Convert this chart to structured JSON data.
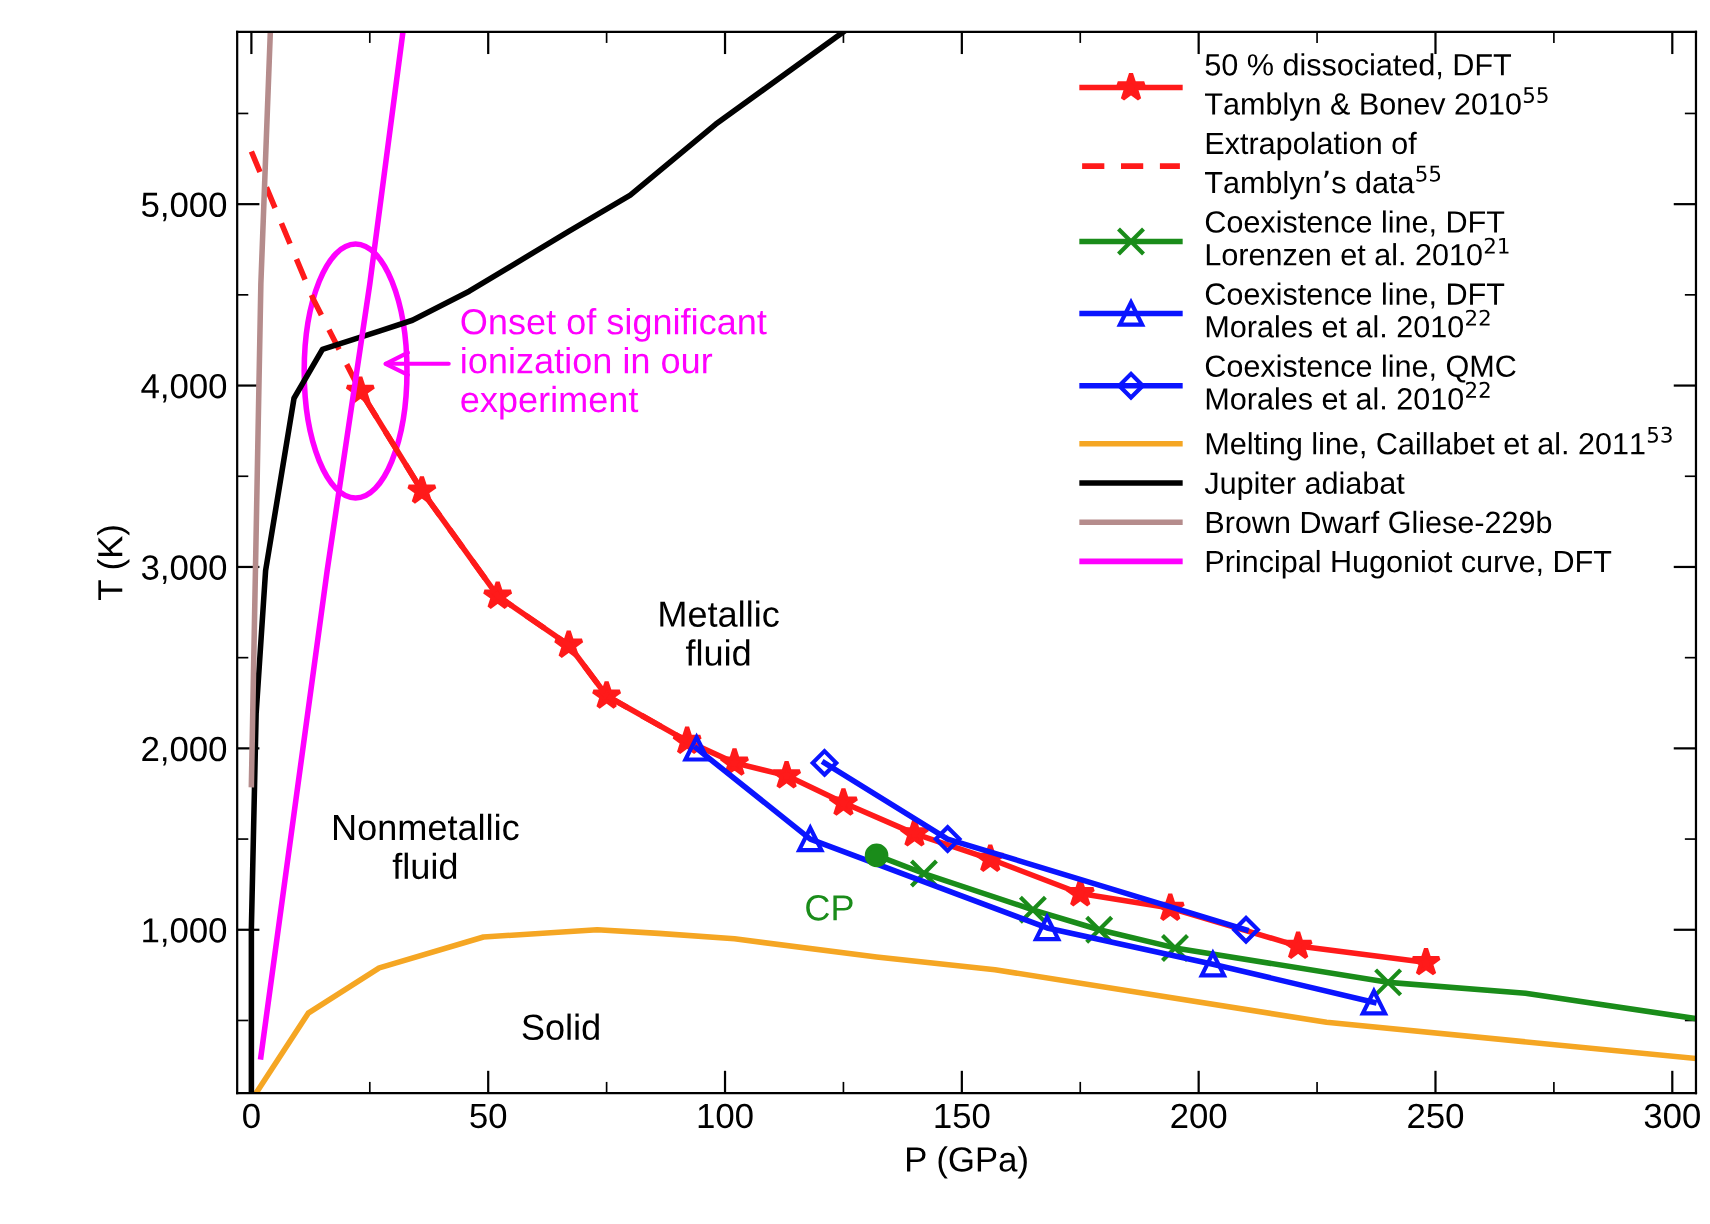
{
  "chart_data": {
    "type": "line",
    "xlabel": "P (GPa)",
    "ylabel": "T (K)",
    "xlim": [
      -3,
      305
    ],
    "ylim": [
      100,
      5950
    ],
    "xticks": [
      0,
      {
        "value": 25,
        "label": null
      },
      50,
      {
        "value": 75,
        "label": null
      },
      100,
      {
        "value": 125,
        "label": null
      },
      150,
      {
        "value": 175,
        "label": null
      },
      200,
      {
        "value": 225,
        "label": null
      },
      250,
      {
        "value": 275,
        "label": null
      },
      300
    ],
    "yticks": [
      {
        "value": 500,
        "label": null
      },
      {
        "value": 1000,
        "label": "1,000"
      },
      {
        "value": 1500,
        "label": null
      },
      {
        "value": 2000,
        "label": "2,000"
      },
      {
        "value": 2500,
        "label": null
      },
      {
        "value": 3000,
        "label": "3,000"
      },
      {
        "value": 3500,
        "label": null
      },
      {
        "value": 4000,
        "label": "4,000"
      },
      {
        "value": 4500,
        "label": null
      },
      {
        "value": 5000,
        "label": "5,000"
      },
      {
        "value": 5500,
        "label": null
      }
    ],
    "grid": false,
    "legend": "top right",
    "series": [
      {
        "name": "50 % dissociated, DFT\nTamblyn & Bonev 2010$^{55}$",
        "color": "#ff1a1a",
        "marker": "star",
        "line_style": "solid",
        "x": [
          23,
          36,
          52,
          67,
          75,
          92,
          102,
          113,
          125,
          140,
          156,
          175,
          194,
          221,
          248
        ],
        "values": [
          3970,
          3420,
          2840,
          2570,
          2290,
          2040,
          1920,
          1850,
          1700,
          1530,
          1390,
          1200,
          1120,
          910,
          820
        ]
      },
      {
        "name": "Extrapolation of\nTamblyn’s data$^{55}$",
        "color": "#ff1a1a",
        "marker": "none",
        "line_style": "dashed",
        "x": [
          0,
          13,
          23,
          36,
          52,
          67,
          75,
          92
        ],
        "values": [
          5290,
          4480,
          3970,
          3420,
          2840,
          2570,
          2290,
          2040
        ]
      },
      {
        "name": "Coexistence line, DFT\nLorenzen et al. 2010$^{21}$",
        "color": "#1a8c1a",
        "marker": "cross",
        "line_style": "solid",
        "x": [
          142,
          165,
          179,
          195,
          240
        ],
        "values": [
          1310,
          1110,
          1000,
          900,
          710
        ]
      },
      {
        "color": "#1a8c1a",
        "marker": "none",
        "line_style": "solid",
        "x": [
          132,
          142
        ],
        "values": [
          1410,
          1310
        ]
      },
      {
        "color": "#1a8c1a",
        "marker": "none",
        "line_style": "solid",
        "x": [
          240,
          269,
          305
        ],
        "values": [
          710,
          650,
          510
        ]
      },
      {
        "type": "scatter",
        "color": "#1a8c1a",
        "marker": "circle",
        "x": [
          132
        ],
        "values": [
          1410
        ]
      },
      {
        "name": "Coexistence line, DFT\nMorales et al. 2010$^{22}$",
        "color": "#0a14ff",
        "marker": "triangle",
        "line_style": "solid",
        "x": [
          94,
          118,
          168,
          203,
          237
        ],
        "values": [
          2000,
          1500,
          1010,
          810,
          600
        ]
      },
      {
        "name": "Coexistence line, QMC\nMorales et al. 2010$^{22}$",
        "color": "#0a14ff",
        "marker": "diamond",
        "line_style": "solid",
        "x": [
          121,
          147,
          210
        ],
        "values": [
          1920,
          1500,
          1000
        ]
      },
      {
        "name": "Melting line, Caillabet et al. 2011$^{53}$",
        "color": "#f5a623",
        "marker": "none",
        "line_style": "solid",
        "x": [
          1,
          12,
          27,
          49,
          73,
          86,
          102,
          132,
          157,
          227,
          305
        ],
        "values": [
          100,
          540,
          790,
          960,
          1000,
          980,
          950,
          850,
          780,
          490,
          290
        ]
      },
      {
        "name": "Jupiter adiabat",
        "color": "#000000",
        "marker": "none",
        "line_style": "solid",
        "x": [
          0,
          0,
          1,
          3,
          9,
          15,
          27,
          34,
          46,
          67,
          80,
          98,
          125
        ],
        "values": [
          100,
          1010,
          2190,
          2980,
          3930,
          4200,
          4300,
          4360,
          4520,
          4850,
          5050,
          5440,
          5950
        ]
      },
      {
        "name": "Brown Dwarf Gliese-229b",
        "color": "#b58c8c",
        "marker": "none",
        "line_style": "solid",
        "x": [
          0,
          2,
          4
        ],
        "values": [
          1800,
          4560,
          5950
        ]
      },
      {
        "name": "Principal Hugoniot curve, DFT",
        "color": "#ff00ff",
        "marker": "none",
        "line_style": "solid",
        "x": [
          2,
          16,
          25,
          32
        ],
        "values": [
          300,
          2980,
          4560,
          5950
        ]
      }
    ],
    "annotations": [
      {
        "text": "Onset of significant\nionization in our\nexperiment",
        "x": 22,
        "y": 4080
      },
      {
        "text": "CP",
        "x": 132,
        "y": 1410
      },
      "Metallic\nfluid",
      "Nonmetallic\nfluid",
      "Solid"
    ]
  }
}
